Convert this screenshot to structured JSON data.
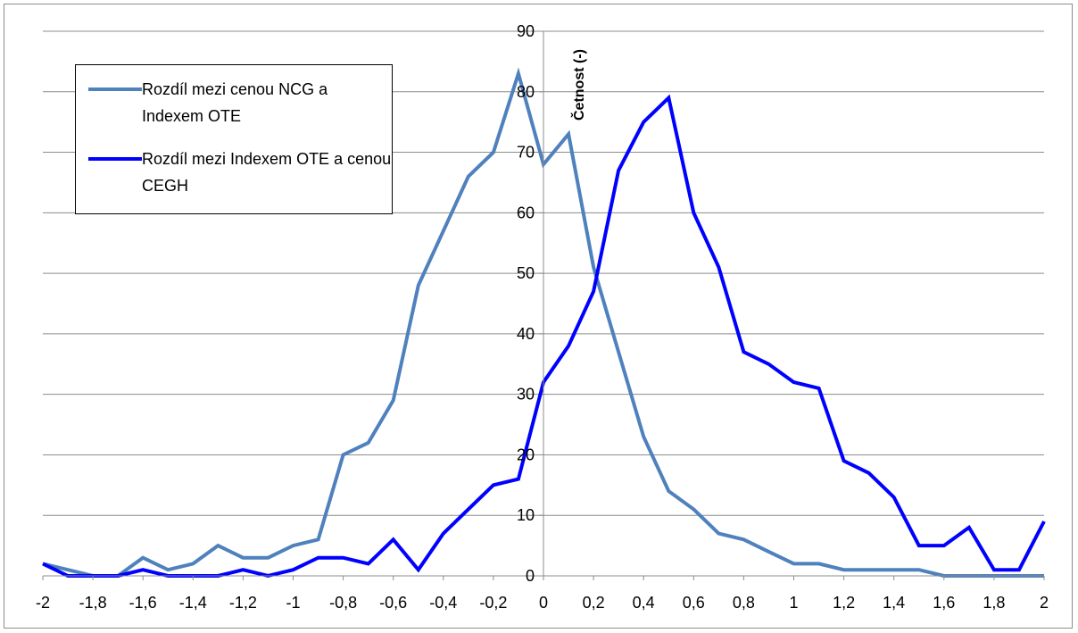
{
  "chart_data": {
    "type": "line",
    "title": "",
    "xlabel": "",
    "ylabel": "Četnost (-)",
    "ylim": [
      0,
      90
    ],
    "y_ticks": [
      0,
      10,
      20,
      30,
      40,
      50,
      60,
      70,
      80,
      90
    ],
    "xlim": [
      -2,
      2
    ],
    "x_ticks": [
      -2,
      -1.8,
      -1.6,
      -1.4,
      -1.2,
      -1,
      -0.8,
      -0.6,
      -0.4,
      -0.2,
      0,
      0.2,
      0.4,
      0.6,
      0.8,
      1,
      1.2,
      1.4,
      1.6,
      1.8,
      2
    ],
    "x_tick_labels": [
      "-2",
      "-1,8",
      "-1,6",
      "-1,4",
      "-1,2",
      "-1",
      "-0,8",
      "-0,6",
      "-0,4",
      "-0,2",
      "0",
      "0,2",
      "0,4",
      "0,6",
      "0,8",
      "1",
      "1,2",
      "1,4",
      "1,6",
      "1,8",
      "2"
    ],
    "grid": "horizontal",
    "legend_position": "top-left",
    "x": [
      -2,
      -1.9,
      -1.8,
      -1.7,
      -1.6,
      -1.5,
      -1.4,
      -1.3,
      -1.2,
      -1.1,
      -1,
      -0.9,
      -0.8,
      -0.7,
      -0.6,
      -0.5,
      -0.4,
      -0.3,
      -0.2,
      -0.1,
      0,
      0.1,
      0.2,
      0.3,
      0.4,
      0.5,
      0.6,
      0.7,
      0.8,
      0.9,
      1,
      1.1,
      1.2,
      1.3,
      1.4,
      1.5,
      1.6,
      1.7,
      1.8,
      1.9,
      2
    ],
    "series": [
      {
        "name": "Rozdíl mezi cenou NCG a Indexem OTE",
        "color": "#4f81bd",
        "values": [
          2,
          1,
          0,
          0,
          3,
          1,
          2,
          5,
          3,
          3,
          5,
          6,
          20,
          22,
          29,
          48,
          57,
          66,
          70,
          83,
          68,
          73,
          51,
          37,
          23,
          14,
          11,
          7,
          6,
          4,
          2,
          2,
          1,
          1,
          1,
          1,
          0,
          0,
          0,
          0,
          0
        ]
      },
      {
        "name": "Rozdíl mezi Indexem OTE a cenou CEGH",
        "color": "#0000ff",
        "values": [
          2,
          0,
          0,
          0,
          1,
          0,
          0,
          0,
          1,
          0,
          1,
          3,
          3,
          2,
          6,
          1,
          7,
          11,
          15,
          16,
          32,
          38,
          47,
          67,
          75,
          79,
          60,
          51,
          37,
          35,
          32,
          31,
          19,
          17,
          13,
          5,
          5,
          8,
          1,
          1,
          9
        ]
      }
    ]
  }
}
